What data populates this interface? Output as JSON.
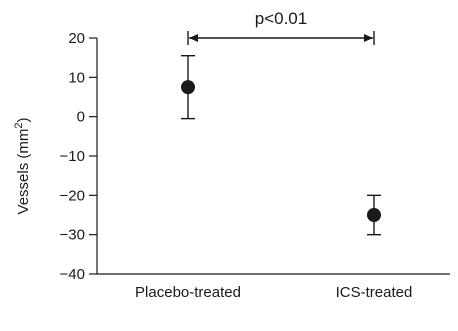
{
  "chart_data": {
    "type": "scatter",
    "categories": [
      "Placebo-treated",
      "ICS-treated"
    ],
    "series": [
      {
        "values": [
          7.5,
          -25
        ],
        "error_upper": [
          15.5,
          -20
        ],
        "error_lower": [
          -0.5,
          -30
        ]
      }
    ],
    "ylabel": "Vessels (mm²)",
    "ylabel_main": "Vessels (mm",
    "ylabel_sup": "2",
    "ylabel_end": ")",
    "ylim": [
      -40,
      20
    ],
    "yticks": [
      20,
      10,
      0,
      -10,
      -20,
      -30,
      -40
    ],
    "annotation": {
      "text": "p<0.01",
      "from_category": 0,
      "to_category": 1
    },
    "grid": false
  }
}
